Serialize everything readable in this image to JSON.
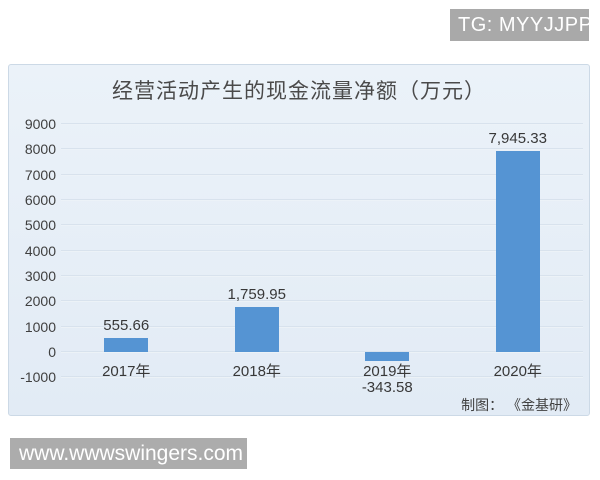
{
  "overlays": {
    "badge": "TG: MYYJJPP",
    "watermark": "www.wwwswingers.com"
  },
  "chart_data": {
    "type": "bar",
    "title": "经营活动产生的现金流量净额（万元）",
    "categories": [
      "2017年",
      "2018年",
      "2019年",
      "2020年"
    ],
    "values": [
      555.66,
      1759.95,
      -343.58,
      7945.33
    ],
    "value_labels": [
      "555.66",
      "1,759.95",
      "-343.58",
      "7,945.33"
    ],
    "xlabel": "",
    "ylabel": "",
    "ylim": [
      -1000,
      9000
    ],
    "yticks": [
      9000,
      8000,
      7000,
      6000,
      5000,
      4000,
      3000,
      2000,
      1000,
      0,
      -1000
    ],
    "grid": true,
    "legend": false,
    "credit": "制图： 《金基研》"
  },
  "colors": {
    "bar": "#5594d3",
    "panel_background": "#e6eef7",
    "badge_background": "#a9a9a9",
    "watermark_background": "#acacac",
    "text": "#404040"
  }
}
